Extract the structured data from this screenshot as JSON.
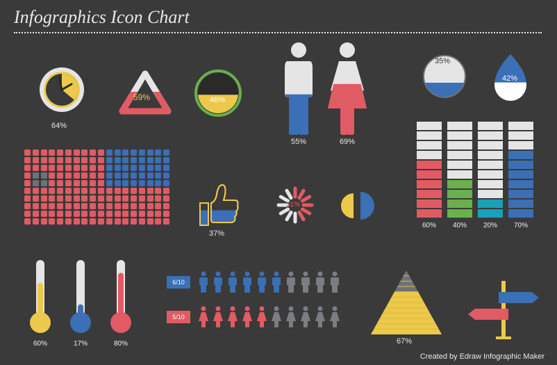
{
  "title": "Infographics Icon Chart",
  "footer": "Created by Edraw Infographic Maker",
  "palette": {
    "bg": "#3a3a3a",
    "text": "#e8e8e8",
    "red": "#e15b64",
    "blue": "#3b6fb6",
    "yellow": "#ecc94b",
    "green": "#6ab04c",
    "teal": "#16a2b8",
    "grey": "#6d7278",
    "light": "#e5e5e5",
    "dark": "#2a2a2a"
  },
  "clock": {
    "percent": 64,
    "label": "64%",
    "fill_color": "#ecc94b",
    "ring_outer": "#e5e5e5",
    "ring_inner": "#ecc94b",
    "face": "#3a3a3a",
    "slice_color": "#2a2a2a",
    "hand_color": "#2a2a2a"
  },
  "triangle": {
    "percent": 59,
    "label": "59%",
    "border_color": "#e5e5e5",
    "progress_color": "#e15b64",
    "fill": "#3a3a3a",
    "label_color": "#ecc94b"
  },
  "circlefill": {
    "percent": 46,
    "label": "46%",
    "border_color": "#6ab04c",
    "fill_color": "#ecc94b",
    "empty_color": "#2a2a2a"
  },
  "people": {
    "male": {
      "percent": 55,
      "label": "55%",
      "head_color": "#e5e5e5",
      "body_top": "#e5e5e5",
      "body_bottom": "#3b6fb6"
    },
    "female": {
      "percent": 69,
      "label": "69%",
      "head_color": "#e5e5e5",
      "body_top": "#e5e5e5",
      "body_bottom": "#e15b64"
    }
  },
  "liquid": {
    "percent": 35,
    "label": "35%",
    "fill_color": "#3b6fb6",
    "empty_color": "#e5e5e5",
    "border_color": "#6d7278"
  },
  "drop": {
    "percent": 42,
    "label": "42%",
    "fill_color": "#ffffff",
    "empty_color": "#3b6fb6"
  },
  "matrix": {
    "rows": 10,
    "cols": 18,
    "colors": [
      "#e15b64",
      "#3b6fb6",
      "#6d7278"
    ],
    "data": [
      [
        0,
        0,
        0,
        0,
        0,
        0,
        0,
        0,
        0,
        0,
        1,
        1,
        1,
        1,
        1,
        1,
        1,
        1
      ],
      [
        0,
        0,
        0,
        0,
        0,
        0,
        0,
        0,
        0,
        0,
        1,
        1,
        1,
        1,
        1,
        1,
        1,
        1
      ],
      [
        0,
        0,
        0,
        0,
        0,
        0,
        0,
        0,
        0,
        0,
        1,
        1,
        1,
        1,
        1,
        1,
        1,
        1
      ],
      [
        0,
        2,
        2,
        0,
        0,
        0,
        0,
        0,
        0,
        0,
        1,
        1,
        1,
        1,
        1,
        1,
        1,
        1
      ],
      [
        0,
        2,
        2,
        0,
        0,
        0,
        0,
        0,
        0,
        0,
        1,
        1,
        1,
        1,
        1,
        1,
        1,
        1
      ],
      [
        0,
        0,
        0,
        0,
        0,
        0,
        0,
        0,
        0,
        0,
        0,
        0,
        0,
        0,
        0,
        0,
        0,
        0
      ],
      [
        0,
        0,
        0,
        0,
        0,
        0,
        0,
        0,
        0,
        0,
        0,
        0,
        0,
        0,
        0,
        0,
        0,
        0
      ],
      [
        0,
        0,
        0,
        0,
        0,
        0,
        0,
        0,
        0,
        0,
        0,
        0,
        0,
        0,
        0,
        0,
        0,
        0
      ],
      [
        0,
        0,
        0,
        0,
        0,
        0,
        0,
        0,
        0,
        0,
        0,
        0,
        0,
        0,
        0,
        0,
        0,
        0
      ],
      [
        0,
        0,
        0,
        0,
        0,
        0,
        0,
        0,
        0,
        0,
        0,
        0,
        0,
        0,
        0,
        0,
        0,
        0
      ]
    ]
  },
  "thumb": {
    "percent": 37,
    "label": "37%",
    "outline": "#ecc94b",
    "fill_top": "#3a3a3a",
    "fill_bottom": "#3b6fb6"
  },
  "spinner": {
    "percent": 51,
    "label": "51%",
    "color_done": "#e15b64",
    "color_todo": "#e5e5e5",
    "segments": 12
  },
  "pac": {
    "front_color": "#ecc94b",
    "back_color": "#3b6fb6"
  },
  "stacks": {
    "rows": 10,
    "cell_color_empty": "#e5e5e5",
    "columns": [
      {
        "label": "60%",
        "fill": 6,
        "color": "#e15b64"
      },
      {
        "label": "40%",
        "fill": 4,
        "color": "#6ab04c"
      },
      {
        "label": "20%",
        "fill": 2,
        "color": "#16a2b8"
      },
      {
        "label": "70%",
        "fill": 7,
        "color": "#3b6fb6"
      }
    ]
  },
  "thermos": [
    {
      "percent": 60,
      "label": "60%",
      "tube": "#e5e5e5",
      "bulb": "#ecc94b",
      "fill": "#ecc94b"
    },
    {
      "percent": 17,
      "label": "17%",
      "tube": "#e5e5e5",
      "bulb": "#3b6fb6",
      "fill": "#3b6fb6"
    },
    {
      "percent": 80,
      "label": "80%",
      "tube": "#e5e5e5",
      "bulb": "#e15b64",
      "fill": "#e15b64"
    }
  ],
  "people_rows": [
    {
      "ratio": "6/10",
      "tag_color": "#3b6fb6",
      "filled": 6,
      "total": 10,
      "icon": "male",
      "color_on": "#3b6fb6",
      "color_off": "#7a7e83"
    },
    {
      "ratio": "5/10",
      "tag_color": "#e15b64",
      "filled": 5,
      "total": 10,
      "icon": "female",
      "color_on": "#e15b64",
      "color_off": "#7a7e83"
    }
  ],
  "pyramid": {
    "percent": 67,
    "label": "67%",
    "fill_color": "#ecc94b",
    "stripe_color": "#d9b93d",
    "bands": 12
  },
  "signpost": {
    "pole_color": "#ecc94b",
    "arrows": [
      {
        "dir": "right",
        "color": "#3b6fb6"
      },
      {
        "dir": "left",
        "color": "#e15b64"
      }
    ]
  }
}
